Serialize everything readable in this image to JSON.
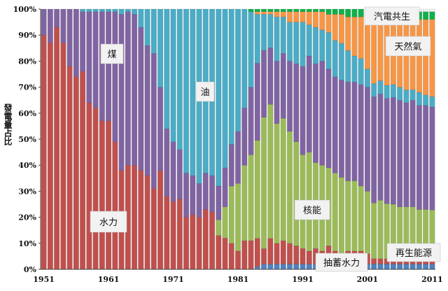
{
  "chart_data": {
    "type": "bar",
    "stacked": true,
    "normalized_percent": true,
    "title": "",
    "xlabel": "",
    "ylabel": "發電量占比",
    "ylim": [
      0,
      100
    ],
    "x_start": 1951,
    "x_end": 2011,
    "x_ticks": [
      "1951",
      "1961",
      "1971",
      "1981",
      "1991",
      "2001",
      "2011"
    ],
    "y_ticks": [
      "0%",
      "10%",
      "20%",
      "30%",
      "40%",
      "50%",
      "60%",
      "70%",
      "80%",
      "90%",
      "100%"
    ],
    "series": [
      {
        "name": "抽蓄水力",
        "color": "#4f81bd",
        "values": [
          0,
          0,
          0,
          0,
          0,
          0,
          0,
          0,
          0,
          0,
          0,
          0,
          0,
          0,
          0,
          0,
          0,
          0,
          0,
          0,
          0,
          0,
          0,
          0,
          0,
          0,
          0,
          0,
          0,
          0,
          0,
          0,
          0,
          1,
          2,
          2,
          2,
          2,
          2,
          2,
          2,
          2,
          2,
          2,
          2,
          2,
          2,
          2,
          2,
          2,
          2,
          2,
          2,
          2,
          2,
          2,
          2,
          2,
          2,
          2,
          2
        ]
      },
      {
        "name": "水力",
        "color": "#c0504d",
        "values": [
          90,
          87,
          93,
          87,
          78,
          74,
          76,
          64,
          62,
          57,
          57,
          49,
          38,
          40,
          40,
          38,
          36,
          31,
          38,
          28,
          26,
          27,
          20,
          21,
          20,
          23,
          22,
          13,
          12,
          10,
          7,
          11,
          11,
          11,
          6,
          10,
          8,
          9,
          8,
          7,
          6,
          5,
          6,
          5,
          7,
          5,
          4,
          5,
          5,
          5,
          4,
          2,
          2,
          2,
          2,
          2,
          2,
          2,
          2,
          2,
          2
        ]
      },
      {
        "name": "核能",
        "color": "#9bbb59",
        "values": [
          0,
          0,
          0,
          0,
          0,
          0,
          0,
          0,
          0,
          0,
          0,
          0,
          0,
          0,
          0,
          0,
          0,
          0,
          0,
          0,
          0,
          0,
          0,
          0,
          0,
          0,
          0,
          6,
          12,
          22,
          26,
          29,
          33,
          38,
          51,
          52,
          46,
          47,
          43,
          40,
          36,
          38,
          33,
          33,
          30,
          30,
          29,
          27,
          27,
          25,
          24,
          21,
          22,
          21,
          21,
          20,
          20,
          20,
          19,
          19,
          19
        ]
      },
      {
        "name": "煤",
        "color": "#8064a2",
        "values": [
          10,
          13,
          7,
          13,
          22,
          26,
          23,
          35,
          37,
          42,
          42,
          50,
          60,
          59,
          58,
          55,
          50,
          52,
          32,
          26,
          23,
          19,
          17,
          15,
          13,
          14,
          14,
          13,
          15,
          16,
          20,
          22,
          26,
          30,
          26,
          22,
          24,
          25,
          27,
          30,
          34,
          37,
          38,
          40,
          38,
          37,
          37,
          38,
          38,
          39,
          40,
          40,
          40,
          40,
          41,
          41,
          40,
          41,
          40,
          40,
          40
        ]
      },
      {
        "name": "油",
        "color": "#4bacc6",
        "values": [
          0,
          0,
          0,
          0,
          0,
          0,
          1,
          1,
          1,
          1,
          1,
          1,
          2,
          1,
          2,
          7,
          14,
          17,
          30,
          46,
          51,
          54,
          63,
          64,
          67,
          63,
          64,
          68,
          61,
          52,
          47,
          38,
          29,
          19,
          14,
          13,
          17,
          14,
          15,
          16,
          17,
          12,
          14,
          12,
          14,
          14,
          14,
          12,
          10,
          10,
          7,
          5,
          5,
          5,
          5,
          5,
          5,
          4,
          5,
          4,
          4
        ]
      },
      {
        "name": "天然氣",
        "color": "#f79646",
        "values": [
          0,
          0,
          0,
          0,
          0,
          0,
          0,
          0,
          0,
          0,
          0,
          0,
          0,
          0,
          0,
          0,
          0,
          0,
          0,
          0,
          0,
          0,
          0,
          0,
          0,
          0,
          0,
          0,
          0,
          0,
          0,
          0,
          0,
          1,
          1,
          1,
          2,
          2,
          4,
          4,
          4,
          5,
          6,
          7,
          7,
          10,
          11,
          13,
          15,
          16,
          20,
          23,
          22,
          24,
          24,
          25,
          26,
          27,
          28,
          29,
          30
        ]
      },
      {
        "name": "汽電共生",
        "color": "#0fb04b",
        "values": [
          0,
          0,
          0,
          0,
          0,
          0,
          0,
          0,
          0,
          0,
          0,
          0,
          0,
          0,
          0,
          0,
          0,
          0,
          0,
          0,
          0,
          0,
          0,
          0,
          0,
          0,
          0,
          0,
          0,
          0,
          0,
          0,
          1,
          1,
          1,
          1,
          1,
          1,
          1,
          1,
          1,
          1,
          1,
          1,
          2,
          2,
          2,
          3,
          3,
          3,
          3,
          4,
          4,
          4,
          4,
          4,
          4,
          3,
          3,
          3,
          3
        ]
      },
      {
        "name": "再生能源",
        "color": "#f2f2f2",
        "values": [
          0,
          0,
          0,
          0,
          0,
          0,
          0,
          0,
          0,
          0,
          0,
          0,
          0,
          0,
          0,
          0,
          0,
          0,
          0,
          0,
          0,
          0,
          0,
          0,
          0,
          0,
          0,
          0,
          0,
          0,
          0,
          0,
          0,
          0,
          0,
          0,
          0,
          0,
          0,
          0,
          0,
          0,
          0,
          0,
          0,
          0,
          0,
          0,
          0,
          0,
          0,
          1,
          1,
          1,
          1,
          1,
          1,
          1,
          1,
          1,
          1
        ]
      }
    ],
    "annotations": {
      "water": "水力",
      "coal": "煤",
      "oil": "油",
      "nuclear": "核能",
      "gas": "天然氣",
      "cogen": "汽電共生",
      "renew": "再生能源",
      "pumped": "抽蓄水力"
    }
  }
}
